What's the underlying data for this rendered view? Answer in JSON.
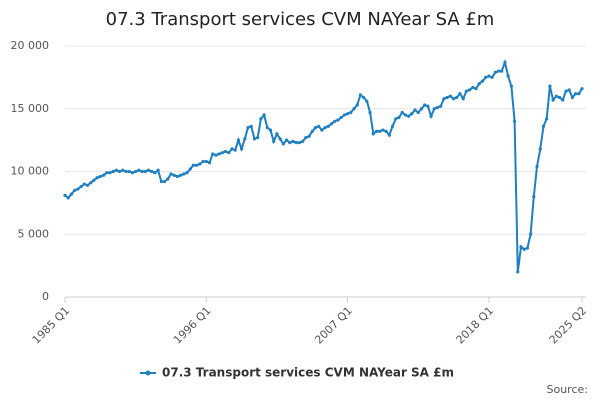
{
  "chart_data": {
    "type": "line",
    "title": "07.3 Transport services CVM NAYear SA £m",
    "source": "Source:",
    "categories": [
      "1985 Q1",
      null,
      null,
      null,
      null,
      null,
      null,
      null,
      null,
      null,
      null,
      null,
      null,
      null,
      null,
      null,
      null,
      null,
      null,
      null,
      null,
      null,
      null,
      null,
      null,
      null,
      null,
      null,
      null,
      null,
      null,
      null,
      null,
      null,
      null,
      null,
      null,
      null,
      null,
      null,
      null,
      null,
      null,
      null,
      "1996 Q1",
      null,
      null,
      null,
      null,
      null,
      null,
      null,
      null,
      null,
      null,
      null,
      null,
      null,
      null,
      null,
      null,
      null,
      null,
      null,
      null,
      null,
      null,
      null,
      null,
      null,
      null,
      null,
      null,
      null,
      null,
      null,
      null,
      null,
      null,
      null,
      null,
      null,
      null,
      null,
      null,
      null,
      null,
      null,
      "2007 Q1",
      null,
      null,
      null,
      null,
      null,
      null,
      null,
      null,
      null,
      null,
      null,
      null,
      null,
      null,
      null,
      null,
      null,
      null,
      null,
      null,
      null,
      null,
      null,
      null,
      null,
      null,
      null,
      null,
      null,
      null,
      null,
      null,
      null,
      null,
      null,
      null,
      null,
      null,
      null,
      null,
      null,
      null,
      null,
      "2018 Q1",
      null,
      null,
      null,
      null,
      null,
      null,
      null,
      null,
      null,
      null,
      null,
      null,
      null,
      null,
      null,
      null,
      null,
      null,
      null,
      null,
      null,
      null,
      null,
      null,
      null,
      null,
      null,
      null,
      "2025 Q2"
    ],
    "series": [
      {
        "name": "07.3 Transport services CVM NAYear SA £m",
        "color": "#1f7fc0",
        "values": [
          8100,
          7900,
          8200,
          8500,
          8600,
          8800,
          9000,
          8900,
          9100,
          9300,
          9500,
          9600,
          9700,
          9900,
          9900,
          10000,
          10100,
          10000,
          10100,
          10000,
          10000,
          9900,
          10000,
          10100,
          10000,
          10000,
          10100,
          10000,
          9900,
          10100,
          9200,
          9200,
          9400,
          9800,
          9700,
          9600,
          9700,
          9800,
          9900,
          10200,
          10500,
          10500,
          10600,
          10800,
          10800,
          10700,
          11400,
          11300,
          11400,
          11500,
          11600,
          11500,
          11800,
          11700,
          12500,
          11800,
          12600,
          13500,
          13600,
          12600,
          12700,
          14200,
          14500,
          13500,
          13300,
          12400,
          13000,
          12600,
          12200,
          12500,
          12300,
          12400,
          12300,
          12300,
          12400,
          12700,
          12800,
          13200,
          13500,
          13600,
          13300,
          13500,
          13600,
          13800,
          14000,
          14100,
          14300,
          14500,
          14600,
          14700,
          15000,
          15300,
          16100,
          15900,
          15600,
          14700,
          13000,
          13200,
          13200,
          13300,
          13200,
          12900,
          13600,
          14200,
          14300,
          14700,
          14500,
          14400,
          14600,
          14900,
          14700,
          15000,
          15300,
          15200,
          14400,
          15000,
          15100,
          15200,
          15800,
          15900,
          16000,
          15800,
          15900,
          16200,
          15800,
          16400,
          16500,
          16700,
          16600,
          17000,
          17200,
          17500,
          17600,
          17500,
          17900,
          18000,
          18000,
          18700,
          17600,
          16800,
          14000,
          2000,
          4000,
          3800,
          3900,
          5000,
          8000,
          10400,
          11800,
          13600,
          14200,
          16800,
          15700,
          16000,
          15900,
          15700,
          16400,
          16500,
          15900,
          16200,
          16200,
          16600
        ]
      }
    ],
    "ylim": [
      0,
      20000
    ],
    "yticks": [
      0,
      {
        "value": 5000,
        "label": "5 000"
      },
      {
        "value": 10000,
        "label": "10 000"
      },
      {
        "value": 15000,
        "label": "15 000"
      },
      {
        "value": 20000,
        "label": "20 000"
      }
    ],
    "grid": true
  }
}
